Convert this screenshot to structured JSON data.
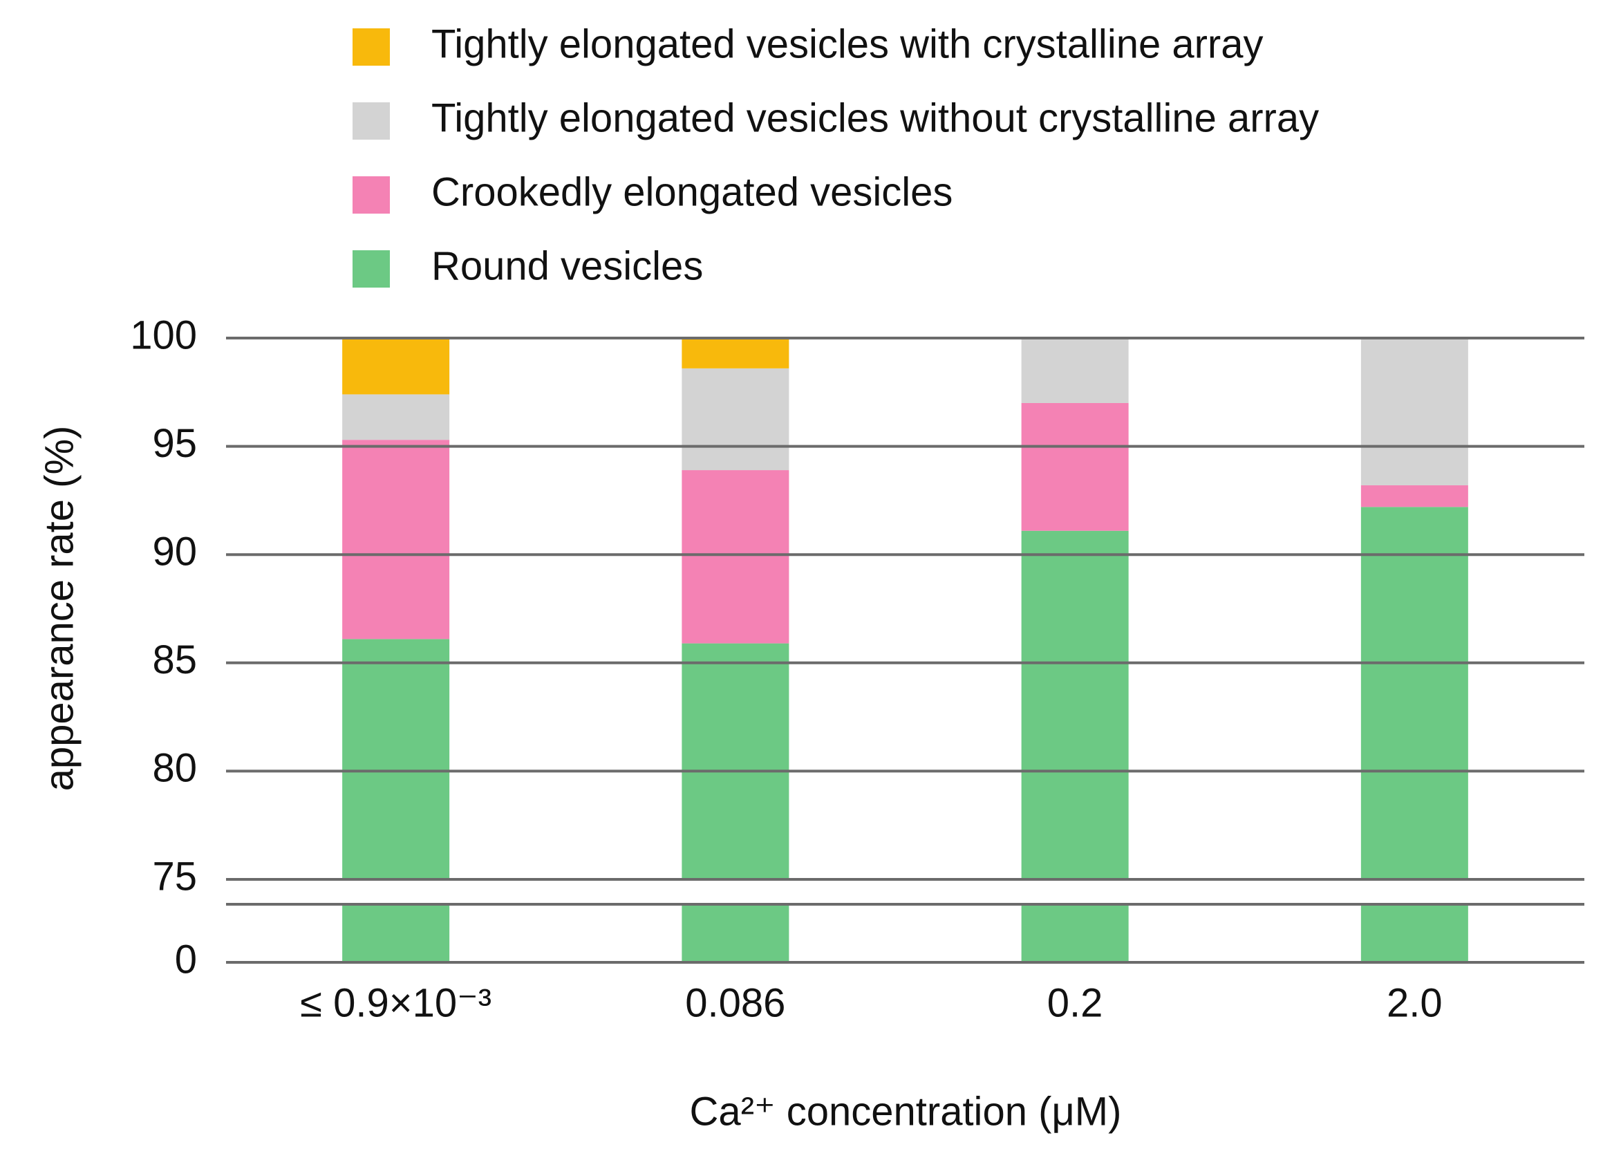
{
  "chart_data": {
    "type": "stacked_bar",
    "categories": [
      "≤ 0.9×10⁻³",
      "0.086",
      "0.2",
      "2.0"
    ],
    "series": [
      {
        "name": "Round vesicles",
        "color": "#6cc984",
        "values": [
          86.1,
          85.9,
          91.1,
          92.2
        ]
      },
      {
        "name": "Crookedly elongated vesicles",
        "color": "#f482b4",
        "values": [
          9.2,
          8.0,
          5.9,
          1.0
        ]
      },
      {
        "name": "Tightly elongated vesicles without crystalline array",
        "color": "#d3d3d3",
        "values": [
          2.1,
          4.7,
          3.0,
          6.8
        ]
      },
      {
        "name": "Tightly elongated vesicles with crystalline array",
        "color": "#f8b90c",
        "values": [
          2.6,
          1.4,
          0,
          0
        ]
      }
    ],
    "x_label": "Ca²⁺ concentration (μM)",
    "y_label": "appearance rate (%)",
    "ylim": [
      75,
      100
    ],
    "yticks": [
      0,
      75,
      80,
      85,
      90,
      95,
      100
    ],
    "axis_break": true,
    "grid": true,
    "legend": "top"
  }
}
